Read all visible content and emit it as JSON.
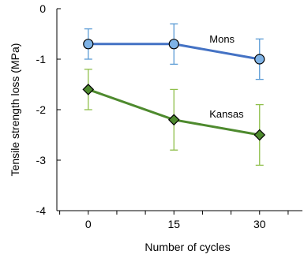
{
  "chart_data": {
    "type": "line",
    "x": [
      0,
      15,
      30
    ],
    "xticks": [
      0,
      15,
      30
    ],
    "xlim": [
      -5.5,
      37.5
    ],
    "xlabel": "Number of cycles",
    "ylabel": "Tensile strength loss (MPa)",
    "ylim": [
      -4,
      0
    ],
    "yticks": [
      0,
      -1,
      -2,
      -3,
      -4
    ],
    "grid": false,
    "series": [
      {
        "name": "Mons",
        "values": [
          -0.7,
          -0.7,
          -1.0
        ],
        "errors": [
          0.3,
          0.4,
          0.4
        ],
        "color": "#4472c4",
        "error_color": "#5b9bd5",
        "marker_fill": "#7fb3e6",
        "marker": "circle",
        "label_anchor": 1
      },
      {
        "name": "Kansas",
        "values": [
          -1.6,
          -2.2,
          -2.5
        ],
        "errors": [
          0.4,
          0.6,
          0.6
        ],
        "color": "#4e8a2e",
        "error_color": "#8fbf4a",
        "marker_fill": "#4e8a2e",
        "marker": "diamond",
        "label_anchor": 1
      }
    ]
  }
}
